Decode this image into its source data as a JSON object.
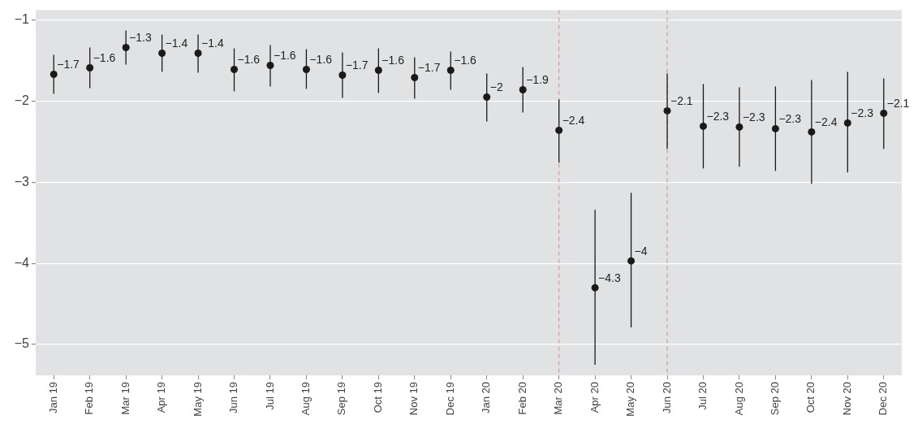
{
  "chart_data": {
    "type": "scatter",
    "categories": [
      "Jan 19",
      "Feb 19",
      "Mar 19",
      "Apr 19",
      "May 19",
      "Jun 19",
      "Jul 19",
      "Aug 19",
      "Sep 19",
      "Oct 19",
      "Nov 19",
      "Dec 19",
      "Jan 20",
      "Feb 20",
      "Mar 20",
      "Apr 20",
      "May 20",
      "Jun 20",
      "Jul 20",
      "Aug 20",
      "Sep 20",
      "Oct 20",
      "Nov 20",
      "Dec 20"
    ],
    "series": [
      {
        "color": "#1a1a1a",
        "values": [
          -1.67,
          -1.59,
          -1.34,
          -1.41,
          -1.41,
          -1.61,
          -1.56,
          -1.61,
          -1.68,
          -1.62,
          -1.71,
          -1.62,
          -1.95,
          -1.86,
          -2.36,
          -4.3,
          -3.97,
          -2.12,
          -2.31,
          -2.32,
          -2.34,
          -2.38,
          -2.27,
          -2.15
        ],
        "errors": [
          [
            -1.91,
            -1.43
          ],
          [
            -1.84,
            -1.34
          ],
          [
            -1.55,
            -1.13
          ],
          [
            -1.64,
            -1.18
          ],
          [
            -1.65,
            -1.18
          ],
          [
            -1.88,
            -1.35
          ],
          [
            -1.82,
            -1.31
          ],
          [
            -1.85,
            -1.36
          ],
          [
            -1.96,
            -1.4
          ],
          [
            -1.9,
            -1.35
          ],
          [
            -1.97,
            -1.46
          ],
          [
            -1.86,
            -1.39
          ],
          [
            -2.25,
            -1.66
          ],
          [
            -2.14,
            -1.58
          ],
          [
            -2.76,
            -1.98
          ],
          [
            -5.25,
            -3.34
          ],
          [
            -4.79,
            -3.13
          ],
          [
            -2.59,
            -1.66
          ],
          [
            -2.83,
            -1.79
          ],
          [
            -2.81,
            -1.83
          ],
          [
            -2.86,
            -1.82
          ],
          [
            -3.02,
            -1.74
          ],
          [
            -2.88,
            -1.64
          ],
          [
            -2.59,
            -1.72
          ]
        ],
        "value_labels": [
          "−1.7",
          "−1.6",
          "−1.3",
          "−1.4",
          "−1.4",
          "−1.6",
          "−1.6",
          "−1.6",
          "−1.7",
          "−1.6",
          "−1.7",
          "−1.6",
          "−2",
          "−1.9",
          "−2.4",
          "−4.3",
          "−4",
          "−2.1",
          "−2.3",
          "−2.3",
          "−2.3",
          "−2.4",
          "−2.3",
          "−2.1"
        ]
      }
    ],
    "ylim": [
      -5.38,
      -0.88
    ],
    "yticks": [
      {
        "value": -5,
        "label": "−5"
      },
      {
        "value": -4,
        "label": "−4"
      },
      {
        "value": -3,
        "label": "−3"
      },
      {
        "value": -2,
        "label": "−2"
      },
      {
        "value": -1,
        "label": "−1"
      }
    ],
    "grid": "y",
    "marker": "circle",
    "legend": false,
    "ref_lines": [
      {
        "axis": "x",
        "value": "Mar 20",
        "color": "#d98c7c",
        "line_style": "dashed"
      },
      {
        "axis": "x",
        "value": "Jun 20",
        "color": "#d98c7c",
        "line_style": "dashed"
      }
    ]
  }
}
